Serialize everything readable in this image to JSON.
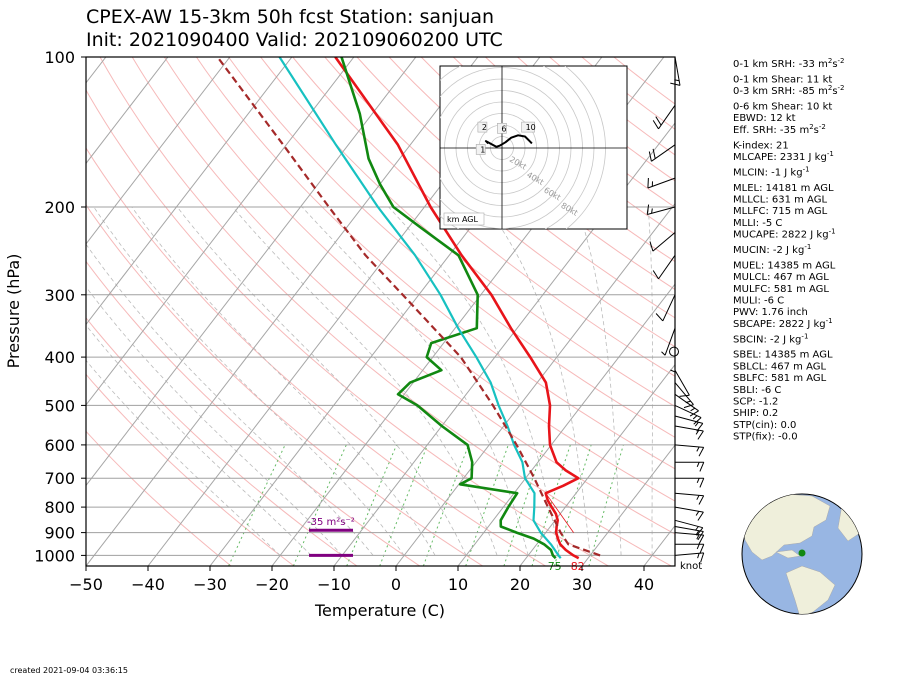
{
  "header": {
    "title_line1": "CPEX-AW 15-3km  50h fcst  Station: sanjuan",
    "title_line2": "Init: 2021090400  Valid: 202109060200 UTC"
  },
  "footer": {
    "created": "created 2021-09-04 03:36:15"
  },
  "colors": {
    "temperature": "#e8141a",
    "dewpoint": "#118811",
    "wetbulb": "#17c1c1",
    "parcel": "#a52a2a",
    "isotherm": "#a6a6a6",
    "dry_adiabat": "#f4a8a8",
    "mixing_ratio": "#66bb66",
    "srh_marker": "#800080"
  },
  "chart_data": {
    "type": "line",
    "subtype": "skew-T log-p sounding",
    "xlabel": "Temperature (C)",
    "ylabel": "Pressure (hPa)",
    "xlim": [
      -50,
      45
    ],
    "ylim": [
      1050,
      100
    ],
    "y_scale": "log",
    "grid": true,
    "x_ticks": [
      -50,
      -40,
      -30,
      -20,
      -10,
      0,
      10,
      20,
      30,
      40
    ],
    "y_ticks": [
      100,
      200,
      300,
      400,
      500,
      600,
      700,
      800,
      900,
      1000
    ],
    "x_tick_labels": [
      "−50",
      "−40",
      "−30",
      "−20",
      "−10",
      "0",
      "10",
      "20",
      "30",
      "40"
    ],
    "y_tick_labels": [
      "100",
      "200",
      "300",
      "400",
      "500",
      "600",
      "700",
      "800",
      "900",
      "1000"
    ],
    "series": [
      {
        "key": "temperature",
        "points": [
          [
            1013,
            28.5
          ],
          [
            1000,
            27.3
          ],
          [
            975,
            25.4
          ],
          [
            950,
            23.8
          ],
          [
            925,
            22.7
          ],
          [
            900,
            21.7
          ],
          [
            875,
            21.0
          ],
          [
            850,
            20.4
          ],
          [
            825,
            19.3
          ],
          [
            800,
            17.8
          ],
          [
            775,
            16.3
          ],
          [
            750,
            15.1
          ],
          [
            725,
            17.0
          ],
          [
            700,
            18.5
          ],
          [
            675,
            15.5
          ],
          [
            650,
            13.0
          ],
          [
            600,
            9.8
          ],
          [
            550,
            7.3
          ],
          [
            500,
            4.9
          ],
          [
            450,
            1.4
          ],
          [
            400,
            -4.3
          ],
          [
            350,
            -11.0
          ],
          [
            300,
            -18.3
          ],
          [
            250,
            -28.0
          ],
          [
            200,
            -39.0
          ],
          [
            150,
            -52.0
          ],
          [
            100,
            -73.0
          ]
        ]
      },
      {
        "key": "dewpoint",
        "points": [
          [
            1013,
            24.8
          ],
          [
            1000,
            24.0
          ],
          [
            975,
            23.0
          ],
          [
            950,
            21.2
          ],
          [
            925,
            18.8
          ],
          [
            900,
            15.3
          ],
          [
            875,
            12.0
          ],
          [
            850,
            11.2
          ],
          [
            800,
            10.8
          ],
          [
            750,
            10.5
          ],
          [
            720,
            0.2
          ],
          [
            700,
            1.3
          ],
          [
            650,
            -0.6
          ],
          [
            600,
            -3.5
          ],
          [
            550,
            -10.0
          ],
          [
            500,
            -16.5
          ],
          [
            475,
            -21.0
          ],
          [
            450,
            -20.5
          ],
          [
            425,
            -17.0
          ],
          [
            400,
            -21.0
          ],
          [
            375,
            -22.0
          ],
          [
            350,
            -16.5
          ],
          [
            300,
            -20.5
          ],
          [
            250,
            -28.5
          ],
          [
            220,
            -38.0
          ],
          [
            200,
            -45.0
          ],
          [
            180,
            -50.0
          ],
          [
            160,
            -55.0
          ],
          [
            130,
            -62.0
          ],
          [
            100,
            -72.0
          ]
        ]
      },
      {
        "key": "wetbulb",
        "points": [
          [
            1013,
            25.6
          ],
          [
            1000,
            24.9
          ],
          [
            950,
            22.3
          ],
          [
            900,
            19.2
          ],
          [
            850,
            16.5
          ],
          [
            800,
            15.0
          ],
          [
            750,
            13.3
          ],
          [
            700,
            9.9
          ],
          [
            650,
            7.5
          ],
          [
            600,
            4.0
          ],
          [
            550,
            0.6
          ],
          [
            500,
            -3.4
          ],
          [
            450,
            -7.5
          ],
          [
            400,
            -13.0
          ],
          [
            350,
            -19.5
          ],
          [
            300,
            -26.5
          ],
          [
            250,
            -35.5
          ],
          [
            200,
            -47.5
          ],
          [
            150,
            -62.0
          ],
          [
            100,
            -82.0
          ]
        ]
      },
      {
        "key": "parcel",
        "points": [
          [
            1000,
            31.6
          ],
          [
            950,
            25.1
          ],
          [
            900,
            22.4
          ],
          [
            850,
            19.9
          ],
          [
            800,
            17.2
          ],
          [
            700,
            11.4
          ],
          [
            600,
            4.4
          ],
          [
            500,
            -4.3
          ],
          [
            400,
            -15.5
          ],
          [
            300,
            -32.6
          ],
          [
            250,
            -43.5
          ],
          [
            200,
            -55.4
          ],
          [
            150,
            -70.5
          ],
          [
            100,
            -92.0
          ]
        ]
      }
    ],
    "surface_labels": {
      "dewpoint": "75",
      "temperature": "82"
    },
    "srh_marker_label": "-35 m²s⁻²",
    "wind_unit_label": "knot",
    "hodograph": {
      "rings_kt": [
        20,
        40,
        60,
        80
      ],
      "ring_labels": [
        "20kt",
        "40kt",
        "60kt",
        "80kt"
      ],
      "height_markers": [
        "1",
        "2",
        "6",
        "10"
      ],
      "height_unit_label": "km AGL",
      "trace_uv_kt": [
        [
          -12,
          4
        ],
        [
          -14,
          6
        ],
        [
          -5,
          1
        ],
        [
          -2,
          2
        ],
        [
          3,
          5
        ],
        [
          8,
          9
        ],
        [
          14,
          11
        ],
        [
          20,
          10
        ],
        [
          24,
          6
        ],
        [
          26,
          4
        ]
      ]
    }
  },
  "indices": [
    {
      "text": "0-1 km SRH: -33 m",
      "sup": "2",
      "tail": "s",
      "sup2": "-2"
    },
    {
      "text": "0-1 km Shear: 11 kt"
    },
    {
      "text": "0-3 km SRH: -85 m",
      "sup": "2",
      "tail": "s",
      "sup2": "-2"
    },
    {
      "text": "0-6 km Shear: 10 kt"
    },
    {
      "text": "EBWD: 12 kt"
    },
    {
      "text": "Eff. SRH: -35 m",
      "sup": "2",
      "tail": "s",
      "sup2": "-2"
    },
    {
      "text": "K-index: 21"
    },
    {
      "text": "MLCAPE: 2331 J kg",
      "sup2": "-1"
    },
    {
      "text": "MLCIN: -1 J kg",
      "sup2": "-1"
    },
    {
      "text": "MLEL: 14181 m AGL"
    },
    {
      "text": "MLLCL: 631 m AGL"
    },
    {
      "text": "MLLFC: 715 m AGL"
    },
    {
      "text": "MLLI: -5 C"
    },
    {
      "text": "MUCAPE: 2822 J kg",
      "sup2": "-1"
    },
    {
      "text": "MUCIN: -2 J kg",
      "sup2": "-1"
    },
    {
      "text": "MUEL: 14385 m AGL"
    },
    {
      "text": "MULCL: 467 m AGL"
    },
    {
      "text": "MULFC: 581 m AGL"
    },
    {
      "text": "MULI: -6 C"
    },
    {
      "text": "PWV: 1.76 inch"
    },
    {
      "text": "SBCAPE: 2822 J kg",
      "sup2": "-1"
    },
    {
      "text": "SBCIN: -2 J kg",
      "sup2": "-1"
    },
    {
      "text": "SBEL: 14385 m AGL"
    },
    {
      "text": "SBLCL: 467 m AGL"
    },
    {
      "text": "SBLFC: 581 m AGL"
    },
    {
      "text": "SBLI: -6 C"
    },
    {
      "text": "SCP: -1.2"
    },
    {
      "text": "SHIP: 0.2"
    },
    {
      "text": "STP(cin): 0.0"
    },
    {
      "text": "STP(fix): -0.0"
    }
  ]
}
